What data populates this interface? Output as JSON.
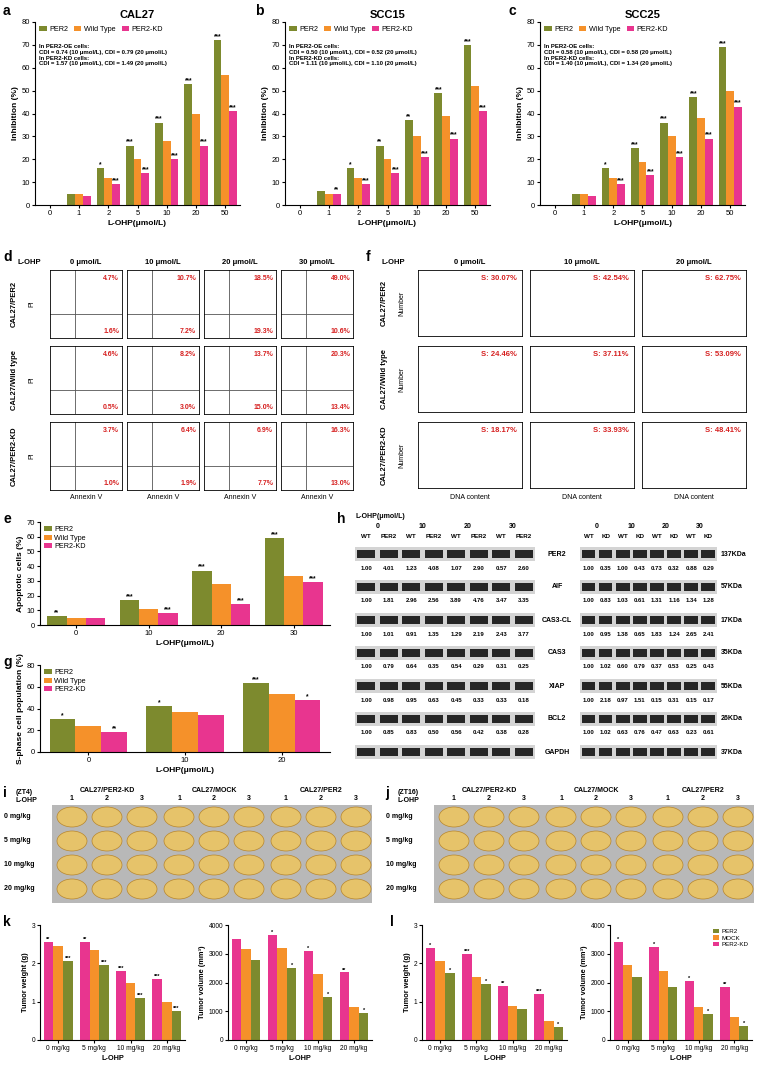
{
  "chart_data": [
    {
      "panel": "a",
      "type": "bar",
      "title": "CAL27",
      "x_label": "L-OHP(μmol/L)",
      "y_label": "Inhibition (%)",
      "categories": [
        "0",
        "1",
        "2",
        "5",
        "10",
        "20",
        "50"
      ],
      "series": [
        {
          "name": "PER2",
          "color": "#7d8a2e",
          "values": [
            0,
            5,
            16,
            26,
            36,
            53,
            72
          ],
          "stars": [
            null,
            null,
            "*",
            "***",
            "***",
            "***",
            "***"
          ]
        },
        {
          "name": "Wild Type",
          "color": "#f5912a",
          "values": [
            0,
            5,
            12,
            20,
            28,
            40,
            57
          ]
        },
        {
          "name": "PER2-KD",
          "color": "#e8358f",
          "values": [
            0,
            4,
            9,
            14,
            20,
            26,
            41
          ],
          "stars": [
            null,
            null,
            "***",
            "***",
            "***",
            "***",
            "***"
          ]
        }
      ],
      "ylim": [
        0,
        80
      ],
      "yticks": [
        0,
        10,
        20,
        30,
        40,
        50,
        60,
        70,
        80
      ],
      "legend": "upper left",
      "annotation": [
        "In PER2-OE cells:",
        "CDI = 0.74 (10 μmol/L), CDI = 0.79 (20 μmol/L)",
        "In PER2-KD cells:",
        "CDI = 1.57 (10 μmol/L), CDI = 1.49 (20 μmol/L)"
      ]
    },
    {
      "panel": "b",
      "type": "bar",
      "title": "SCC15",
      "x_label": "L-OHP(μmol/L)",
      "y_label": "Inhibition (%)",
      "categories": [
        "0",
        "1",
        "2",
        "5",
        "10",
        "20",
        "50"
      ],
      "series": [
        {
          "name": "PER2",
          "color": "#7d8a2e",
          "values": [
            0,
            6,
            16,
            26,
            37,
            49,
            70
          ],
          "stars": [
            null,
            null,
            "*",
            "**",
            "**",
            "***",
            "***"
          ]
        },
        {
          "name": "Wild Type",
          "color": "#f5912a",
          "values": [
            0,
            5,
            12,
            20,
            30,
            39,
            52
          ]
        },
        {
          "name": "PER2-KD",
          "color": "#e8358f",
          "values": [
            0,
            5,
            9,
            14,
            21,
            29,
            41
          ],
          "stars": [
            null,
            "**",
            "***",
            "***",
            "***",
            "***",
            "***"
          ]
        }
      ],
      "ylim": [
        0,
        80
      ],
      "yticks": [
        0,
        10,
        20,
        30,
        40,
        50,
        60,
        70,
        80
      ],
      "legend": "upper left",
      "annotation": [
        "In PER2-OE cells:",
        "CDI = 0.50 (10 μmol/L), CDI = 0.52 (20 μmol/L)",
        "In PER2-KD cells:",
        "CDI = 1.11 (10 μmol/L), CDI = 1.10 (20 μmol/L)"
      ]
    },
    {
      "panel": "c",
      "type": "bar",
      "title": "SCC25",
      "x_label": "L-OHP(μmol/L)",
      "y_label": "Inhibition (%)",
      "categories": [
        "0",
        "1",
        "2",
        "5",
        "10",
        "20",
        "50"
      ],
      "series": [
        {
          "name": "PER2",
          "color": "#7d8a2e",
          "values": [
            0,
            5,
            16,
            25,
            36,
            47,
            69
          ],
          "stars": [
            null,
            null,
            "*",
            "***",
            "***",
            "***",
            "***"
          ]
        },
        {
          "name": "Wild Type",
          "color": "#f5912a",
          "values": [
            0,
            5,
            12,
            19,
            30,
            38,
            50
          ]
        },
        {
          "name": "PER2-KD",
          "color": "#e8358f",
          "values": [
            0,
            4,
            9,
            13,
            21,
            29,
            43
          ],
          "stars": [
            null,
            null,
            "***",
            "***",
            "***",
            "***",
            "***"
          ]
        }
      ],
      "ylim": [
        0,
        80
      ],
      "yticks": [
        0,
        10,
        20,
        30,
        40,
        50,
        60,
        70,
        80
      ],
      "legend": "upper left",
      "annotation": [
        "In PER2-OE cells:",
        "CDI = 0.58 (10 μmol/L), CDI = 0.58 (20 μmol/L)",
        "In PER2-KD cells:",
        "CDI = 1.40 (10 μmol/L), CDI = 1.34 (20 μmol/L)"
      ]
    },
    {
      "panel": "e",
      "type": "bar",
      "x_label": "L-OHP(μmol/L)",
      "y_label": "Apoptotic cells (%)",
      "categories": [
        "0",
        "10",
        "20",
        "30"
      ],
      "series": [
        {
          "name": "PER2",
          "color": "#7d8a2e",
          "values": [
            6,
            17,
            37,
            59
          ],
          "stars": [
            "**",
            "***",
            "***",
            "***"
          ]
        },
        {
          "name": "Wild Type",
          "color": "#f5912a",
          "values": [
            4.8,
            11,
            28,
            33
          ]
        },
        {
          "name": "PER2-KD",
          "color": "#e8358f",
          "values": [
            4.5,
            8,
            14,
            29
          ],
          "stars": [
            null,
            "***",
            "***",
            "***"
          ]
        }
      ],
      "ylim": [
        0,
        70
      ],
      "yticks": [
        0,
        10,
        20,
        30,
        40,
        50,
        60,
        70
      ],
      "legend": "upper left"
    },
    {
      "panel": "g",
      "type": "bar",
      "x_label": "L-OHP(μmol/L)",
      "y_label": "S-phase cell population (%)",
      "categories": [
        "0",
        "10",
        "20"
      ],
      "series": [
        {
          "name": "PER2",
          "color": "#7d8a2e",
          "values": [
            30,
            42,
            63
          ],
          "stars": [
            "*",
            "*",
            "***"
          ]
        },
        {
          "name": "Wild Type",
          "color": "#f5912a",
          "values": [
            24,
            37,
            53
          ]
        },
        {
          "name": "PER2-KD",
          "color": "#e8358f",
          "values": [
            18,
            34,
            48
          ],
          "stars": [
            "**",
            null,
            "*"
          ]
        }
      ],
      "ylim": [
        0,
        80
      ],
      "yticks": [
        0,
        20,
        40,
        60,
        80
      ],
      "legend": "upper left"
    },
    {
      "panel": "k",
      "type": "bar",
      "x_label": "L-OHP",
      "y_label": "Tumor weight (g)",
      "categories": [
        "0 mg/kg",
        "5 mg/kg",
        "10 mg/kg",
        "20 mg/kg"
      ],
      "series": [
        {
          "color": "#e8358f",
          "values": [
            2.55,
            2.55,
            1.8,
            1.6
          ],
          "stars": [
            "**",
            "**",
            "***",
            "***"
          ]
        },
        {
          "color": "#f5912a",
          "values": [
            2.45,
            2.35,
            1.5,
            1.0
          ]
        },
        {
          "color": "#7d8a2e",
          "values": [
            2.05,
            1.95,
            1.1,
            0.75
          ],
          "stars": [
            "***",
            "***",
            "***",
            "***"
          ]
        }
      ],
      "ylim": [
        0,
        3
      ],
      "yticks": [
        0,
        1,
        2,
        3
      ]
    },
    {
      "type": "bar",
      "x_label": "L-OHP",
      "y_label": "Tumor volume (mm³)",
      "categories": [
        "0 mg/kg",
        "5 mg/kg",
        "10 mg/kg",
        "20 mg/kg"
      ],
      "series": [
        {
          "color": "#e8358f",
          "values": [
            3500,
            3650,
            3100,
            2350
          ],
          "stars": [
            null,
            "*",
            "*",
            "**"
          ]
        },
        {
          "color": "#f5912a",
          "values": [
            3150,
            3200,
            2300,
            1150
          ]
        },
        {
          "color": "#7d8a2e",
          "values": [
            2800,
            2500,
            1500,
            950
          ],
          "stars": [
            null,
            "*",
            "*",
            "*"
          ]
        }
      ],
      "ylim": [
        0,
        4000
      ],
      "yticks": [
        0,
        1000,
        2000,
        3000,
        4000
      ]
    },
    {
      "panel": "l",
      "type": "bar",
      "x_label": "L-OHP",
      "y_label": "Tumor weight (g)",
      "categories": [
        "0 mg/kg",
        "5 mg/kg",
        "10 mg/kg",
        "20 mg/kg"
      ],
      "series": [
        {
          "color": "#e8358f",
          "values": [
            2.4,
            2.25,
            1.4,
            1.2
          ],
          "stars": [
            "*",
            "***",
            "**",
            "***"
          ]
        },
        {
          "color": "#f5912a",
          "values": [
            2.05,
            1.65,
            0.9,
            0.5
          ]
        },
        {
          "color": "#7d8a2e",
          "values": [
            1.75,
            1.45,
            0.8,
            0.35
          ],
          "stars": [
            "*",
            "*",
            null,
            "*"
          ]
        }
      ],
      "ylim": [
        0,
        3
      ],
      "yticks": [
        0,
        1,
        2,
        3
      ]
    },
    {
      "type": "bar",
      "x_label": "L-OHP",
      "y_label": "Tumor volume (mm³)",
      "categories": [
        "0 mg/kg",
        "5 mg/kg",
        "10 mg/kg",
        "20 mg/kg"
      ],
      "series": [
        {
          "name": "PER2-KD",
          "color": "#e8358f",
          "values": [
            3400,
            3250,
            2050,
            1850
          ],
          "stars": [
            "*",
            "*",
            "*",
            "**"
          ]
        },
        {
          "name": "MOCK",
          "color": "#f5912a",
          "values": [
            2600,
            2400,
            1150,
            800
          ]
        },
        {
          "name": "PER2",
          "color": "#7d8a2e",
          "values": [
            2200,
            1850,
            900,
            500
          ],
          "stars": [
            null,
            null,
            "*",
            "*"
          ]
        }
      ],
      "ylim": [
        0,
        4000
      ],
      "yticks": [
        0,
        1000,
        2000,
        3000,
        4000
      ],
      "legend": "upper right"
    }
  ],
  "flow_cytometry": {
    "panel": "d",
    "drug": "L-OHP",
    "columns": [
      "0 μmol/L",
      "10 μmol/L",
      "20 μmol/L",
      "30 μmol/L"
    ],
    "y_label": "PI",
    "x_label": "Annexin V",
    "rows": [
      {
        "label": "CAL27/PER2",
        "upper_right": [
          "4.7%",
          "10.7%",
          "18.5%",
          "49.0%"
        ],
        "lower_right": [
          "1.6%",
          "7.2%",
          "19.3%",
          "10.6%"
        ]
      },
      {
        "label": "CAL27/Wild type",
        "upper_right": [
          "4.6%",
          "8.2%",
          "13.7%",
          "20.3%"
        ],
        "lower_right": [
          "0.5%",
          "3.0%",
          "15.0%",
          "13.4%"
        ]
      },
      {
        "label": "CAL27/PER2-KD",
        "upper_right": [
          "3.7%",
          "6.4%",
          "6.9%",
          "16.3%"
        ],
        "lower_right": [
          "1.0%",
          "1.9%",
          "7.7%",
          "13.0%"
        ]
      }
    ]
  },
  "cell_cycle": {
    "panel": "f",
    "drug": "L-OHP",
    "columns": [
      "0 μmol/L",
      "10 μmol/L",
      "20 μmol/L"
    ],
    "y_label": "Number",
    "x_label": "DNA content",
    "rows": [
      {
        "label": "CAL27/PER2",
        "s_phase": [
          "S: 30.07%",
          "S: 42.54%",
          "S: 62.75%"
        ]
      },
      {
        "label": "CAL27/Wild type",
        "s_phase": [
          "S: 24.46%",
          "S: 37.11%",
          "S: 53.09%"
        ]
      },
      {
        "label": "CAL27/PER2-KD",
        "s_phase": [
          "S: 18.17%",
          "S: 33.93%",
          "S: 48.41%"
        ]
      }
    ]
  },
  "western_blot": {
    "panel": "h",
    "header": "L-OHP(μmol/L)",
    "proteins": [
      "PER2",
      "AIF",
      "CAS3-CL",
      "CAS3",
      "XIAP",
      "BCL2",
      "GAPDH"
    ],
    "sizes": [
      "137KDa",
      "57KDa",
      "17KDa",
      "35KDa",
      "55KDa",
      "26KDa",
      "37KDa"
    ],
    "blots": [
      {
        "doses": [
          "0",
          "10",
          "20",
          "30"
        ],
        "lanes": [
          "WT",
          "PER2",
          "WT",
          "PER2",
          "WT",
          "PER2",
          "WT",
          "PER2"
        ],
        "values": [
          [
            "1.00",
            "4.01",
            "1.23",
            "4.08",
            "1.07",
            "2.90",
            "0.57",
            "2.60"
          ],
          [
            "1.00",
            "1.81",
            "2.96",
            "2.56",
            "3.89",
            "4.76",
            "3.47",
            "3.35"
          ],
          [
            "1.00",
            "1.01",
            "0.91",
            "1.35",
            "1.29",
            "2.19",
            "2.43",
            "3.77"
          ],
          [
            "1.00",
            "0.79",
            "0.64",
            "0.35",
            "0.54",
            "0.29",
            "0.31",
            "0.25"
          ],
          [
            "1.00",
            "0.98",
            "0.95",
            "0.63",
            "0.45",
            "0.33",
            "0.33",
            "0.18"
          ],
          [
            "1.00",
            "0.85",
            "0.83",
            "0.50",
            "0.56",
            "0.42",
            "0.38",
            "0.28"
          ]
        ]
      },
      {
        "doses": [
          "0",
          "10",
          "20",
          "30"
        ],
        "lanes": [
          "WT",
          "KD",
          "WT",
          "KD",
          "WT",
          "KD",
          "WT",
          "KD"
        ],
        "values": [
          [
            "1.00",
            "0.35",
            "1.00",
            "0.43",
            "0.73",
            "0.32",
            "0.88",
            "0.29"
          ],
          [
            "1.00",
            "0.83",
            "1.03",
            "0.61",
            "1.31",
            "1.16",
            "1.34",
            "1.28"
          ],
          [
            "1.00",
            "0.95",
            "1.38",
            "0.65",
            "1.83",
            "1.24",
            "2.65",
            "2.41"
          ],
          [
            "1.00",
            "1.02",
            "0.60",
            "0.79",
            "0.37",
            "0.53",
            "0.25",
            "0.43"
          ],
          [
            "1.00",
            "2.18",
            "0.97",
            "1.51",
            "0.15",
            "0.31",
            "0.15",
            "0.17"
          ],
          [
            "1.00",
            "1.02",
            "0.63",
            "0.76",
            "0.47",
            "0.63",
            "0.23",
            "0.61"
          ]
        ]
      }
    ]
  },
  "xenograft": [
    {
      "panel": "i",
      "time": "(ZT4)",
      "drug": "L-OHP",
      "groups": [
        "CAL27/PER2-KD",
        "CAL27/MOCK",
        "CAL27/PER2"
      ],
      "replicates": [
        "1",
        "2",
        "3"
      ],
      "doses": [
        "0 mg/kg",
        "5 mg/kg",
        "10 mg/kg",
        "20 mg/kg"
      ]
    },
    {
      "panel": "j",
      "time": "(ZT16)",
      "drug": "L-OHP",
      "groups": [
        "CAL27/PER2-KD",
        "CAL27/MOCK",
        "CAL27/PER2"
      ],
      "replicates": [
        "1",
        "2",
        "3"
      ],
      "doses": [
        "0 mg/kg",
        "5 mg/kg",
        "10 mg/kg",
        "20 mg/kg"
      ]
    }
  ]
}
